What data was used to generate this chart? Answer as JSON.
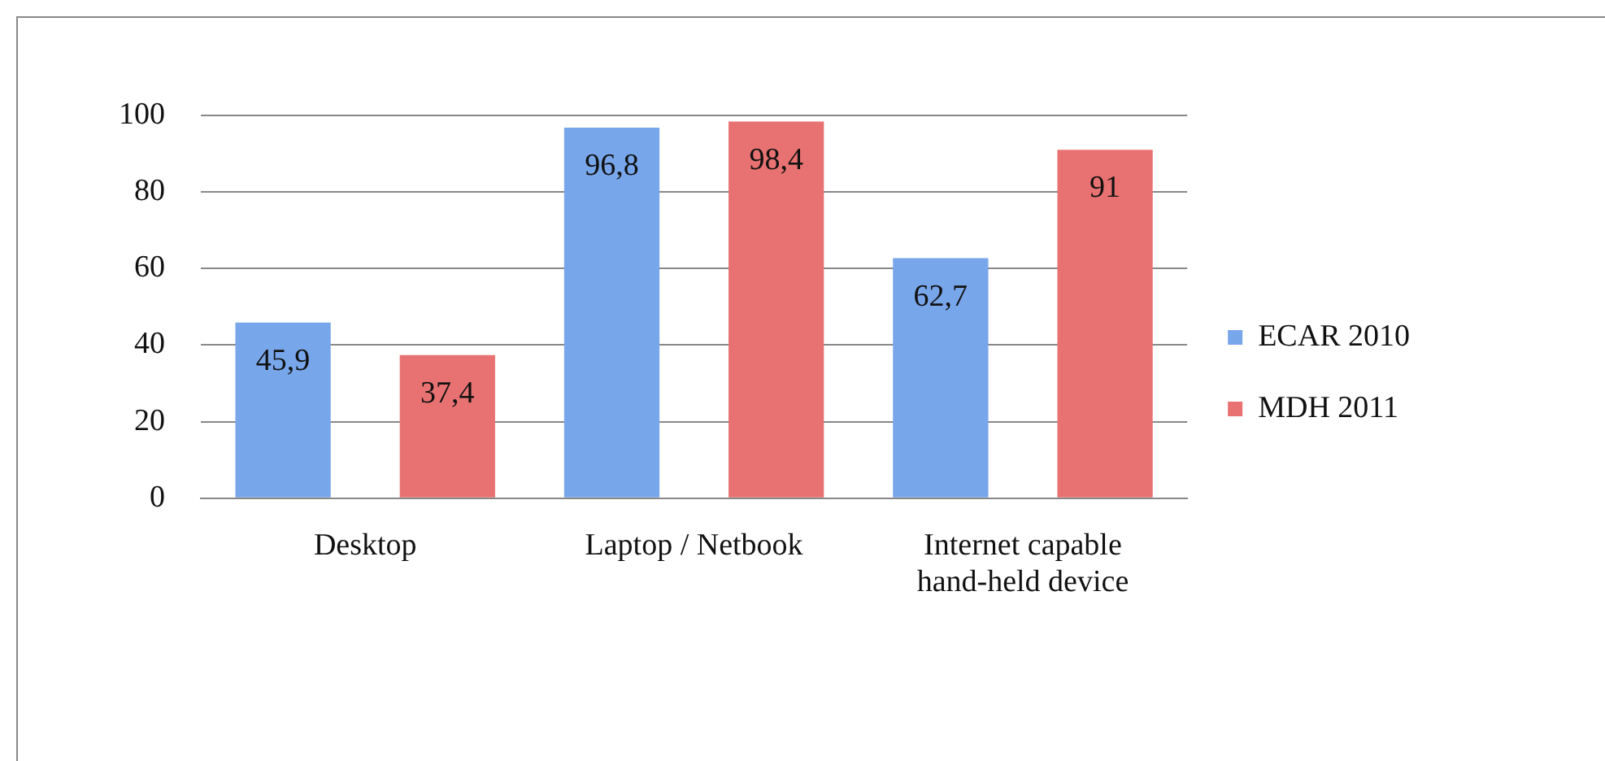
{
  "chart_data": {
    "type": "bar",
    "categories": [
      "Desktop",
      "Laptop / Netbook",
      "Internet capable hand-held device"
    ],
    "series": [
      {
        "name": "ECAR 2010",
        "color": "#78a6ea",
        "values": [
          45.9,
          96.8,
          62.7
        ],
        "value_labels": [
          "45,9",
          "96,8",
          "62,7"
        ]
      },
      {
        "name": "MDH 2011",
        "color": "#e87272",
        "values": [
          37.4,
          98.4,
          91
        ],
        "value_labels": [
          "37,4",
          "98,4",
          "91"
        ]
      }
    ],
    "ylim": [
      0,
      100
    ],
    "yticks": [
      0,
      20,
      40,
      60,
      80,
      100
    ],
    "grid": "y",
    "legend": "right"
  }
}
